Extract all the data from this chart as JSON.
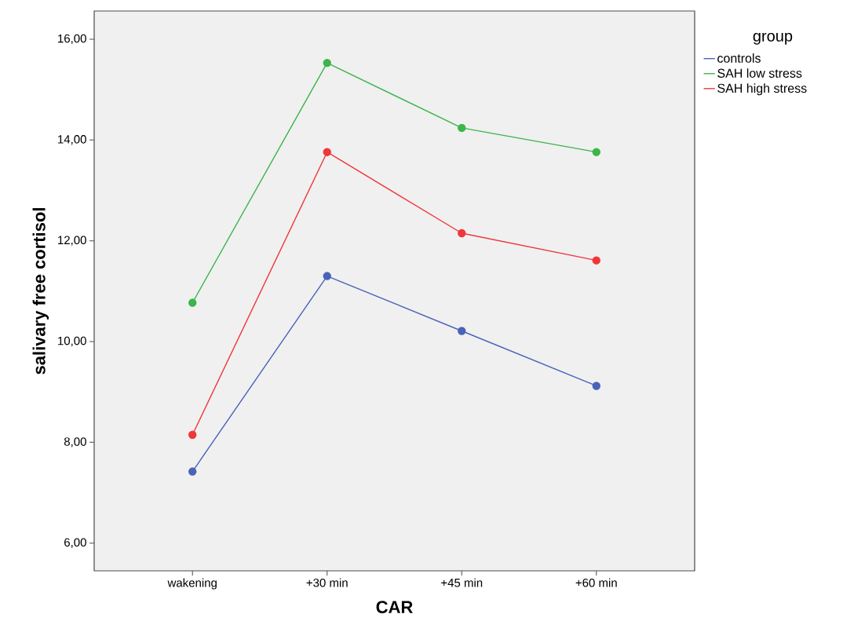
{
  "chart_data": {
    "type": "line",
    "xlabel": "CAR",
    "ylabel": "salivary free cortisol",
    "legend_title": "group",
    "categories": [
      "wakening",
      "+30 min",
      "+45 min",
      "+60 min"
    ],
    "series": [
      {
        "name": "controls",
        "color": "#4a62b8",
        "values": [
          7.42,
          11.3,
          10.21,
          9.12
        ]
      },
      {
        "name": "SAH low stress",
        "color": "#3cb54a",
        "values": [
          10.77,
          15.53,
          14.24,
          13.76
        ]
      },
      {
        "name": "SAH high stress",
        "color": "#f0363a",
        "values": [
          8.15,
          13.76,
          12.15,
          11.61
        ]
      }
    ],
    "ylim": [
      5.45,
      16.56
    ],
    "yticks": [
      {
        "value": 6,
        "label": "6,00"
      },
      {
        "value": 8,
        "label": "8,00"
      },
      {
        "value": 10,
        "label": "10,00"
      },
      {
        "value": 12,
        "label": "12,00"
      },
      {
        "value": 14,
        "label": "14,00"
      },
      {
        "value": 16,
        "label": "16,00"
      }
    ],
    "marker": "circle",
    "line_style": "solid",
    "grid": false,
    "legend": "top right"
  }
}
